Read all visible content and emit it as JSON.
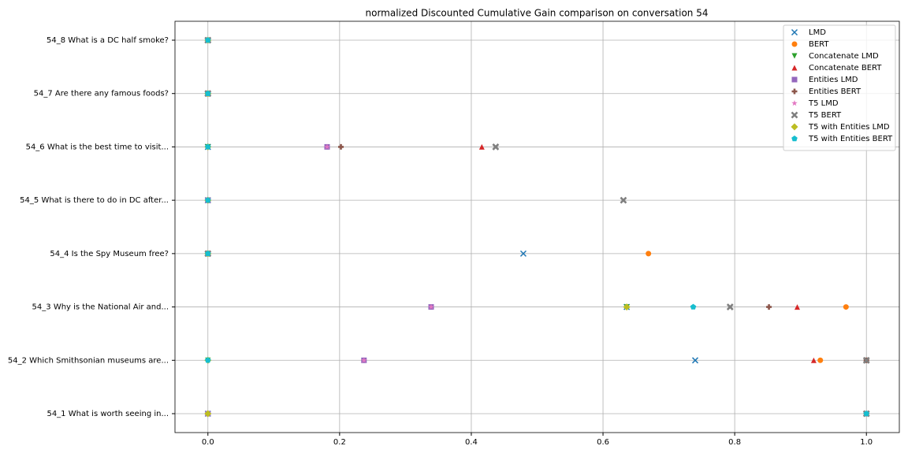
{
  "chart_data": {
    "type": "scatter",
    "title": "normalized Discounted Cumulative Gain comparison on conversation 54",
    "categories": [
      "54_1 What is worth seeing in...",
      "54_2 Which Smithsonian museums are...",
      "54_3 Why is the National Air and...",
      "54_4 Is the Spy Museum free?",
      "54_5 What is there to do in DC after...",
      "54_6 What is the best time to visit...",
      "54_7 Are there any famous foods?",
      "54_8 What is a DC half smoke?"
    ],
    "xlim": [
      -0.05,
      1.05
    ],
    "xticks": [
      {
        "value": 0,
        "label": "0.0"
      },
      0.2,
      0.4,
      0.6,
      0.8,
      {
        "value": 1,
        "label": "1.0"
      }
    ],
    "grid": true,
    "legend": "upper right",
    "series": [
      {
        "name": "LMD",
        "color": "#1f77b4",
        "marker": "x",
        "values": [
          0,
          0.74,
          0.636,
          0.479,
          0,
          0,
          0,
          0
        ]
      },
      {
        "name": "BERT",
        "color": "#ff7f0e",
        "marker": "o",
        "values": [
          1,
          0.93,
          0.969,
          0.669,
          0,
          0,
          0,
          0
        ]
      },
      {
        "name": "Concatenate LMD",
        "color": "#2ca02c",
        "marker": "v",
        "values": [
          0,
          0,
          0.636,
          0,
          0,
          0,
          0,
          0
        ]
      },
      {
        "name": "Concatenate BERT",
        "color": "#d62728",
        "marker": "^",
        "values": [
          1,
          0.92,
          0.895,
          0,
          0,
          0.416,
          0,
          0
        ]
      },
      {
        "name": "Entities LMD",
        "color": "#9467bd",
        "marker": "s",
        "values": [
          0,
          0.237,
          0.339,
          0,
          0,
          0.181,
          0,
          0
        ]
      },
      {
        "name": "Entities BERT",
        "color": "#8c564b",
        "marker": "P",
        "values": [
          1,
          1,
          0.852,
          0,
          0,
          0.202,
          0,
          0
        ]
      },
      {
        "name": "T5 LMD",
        "color": "#e377c2",
        "marker": "*",
        "values": [
          0,
          0.237,
          0.339,
          0,
          0,
          0.181,
          0,
          0
        ]
      },
      {
        "name": "T5 BERT",
        "color": "#7f7f7f",
        "marker": "X",
        "values": [
          1,
          1,
          0.793,
          0,
          0.631,
          0.437,
          0,
          0
        ]
      },
      {
        "name": "T5 with Entities LMD",
        "color": "#bcbd22",
        "marker": "D",
        "values": [
          0,
          0,
          0.636,
          0,
          0,
          0,
          0,
          0
        ]
      },
      {
        "name": "T5 with Entities BERT",
        "color": "#17becf",
        "marker": "p",
        "values": [
          1,
          0,
          0.737,
          0,
          0,
          0,
          0,
          0
        ]
      }
    ]
  }
}
